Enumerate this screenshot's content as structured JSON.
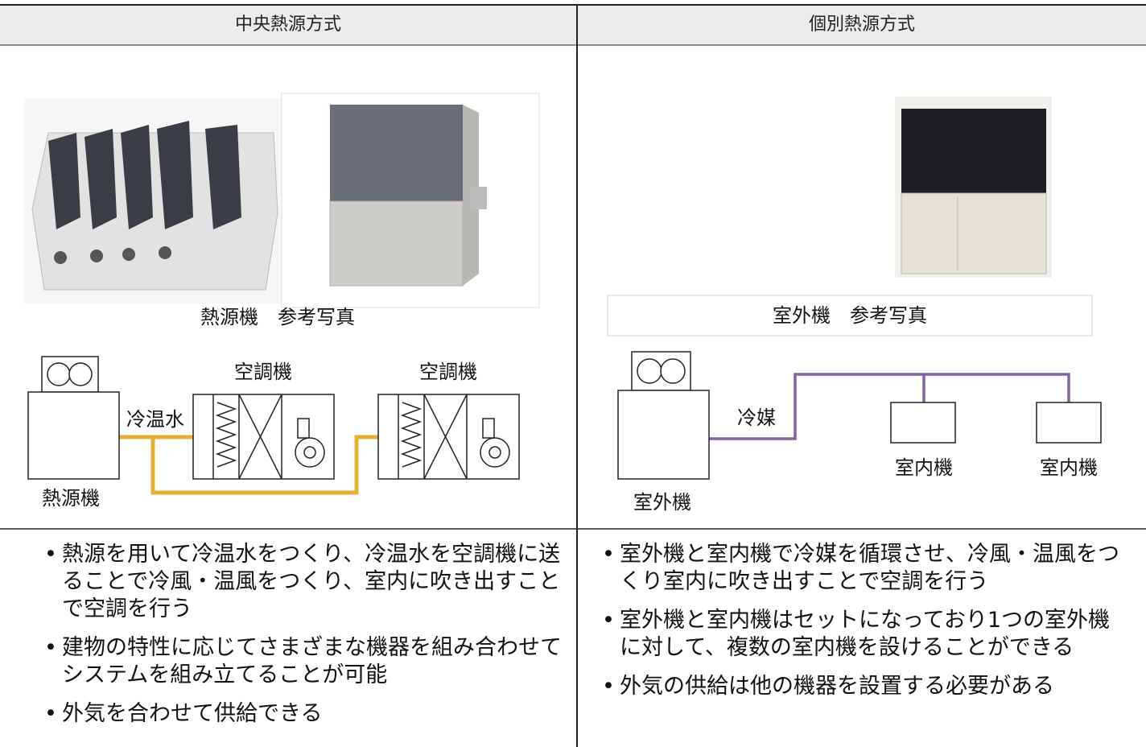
{
  "columns": [
    {
      "header": "中央熱源方式",
      "photo_caption": "熱源機　参考写真",
      "diagram": {
        "source": "熱源機",
        "pipe": "冷温水",
        "units": [
          "空調機",
          "空調機"
        ]
      },
      "bullets": [
        "熱源を用いて冷温水をつくり、冷温水を空調機に送ることで冷風・温風をつくり、室内に吹き出すことで空調を行う",
        "建物の特性に応じてさまざまな機器を組み合わせてシステムを組み立てることが可能",
        "外気を合わせて供給できる"
      ]
    },
    {
      "header": "個別熱源方式",
      "photo_caption": "室外機　参考写真",
      "diagram": {
        "source": "室外機",
        "pipe": "冷媒",
        "units": [
          "室内機",
          "室内機"
        ]
      },
      "bullets": [
        "室外機と室内機で冷媒を循環させ、冷風・温風をつくり室内に吹き出すことで空調を行う",
        "室外機と室内機はセットになっており1つの室外機に対して、複数の室内機を設けることができる",
        "外気の供給は他の機器を設置する必要がある"
      ]
    }
  ]
}
